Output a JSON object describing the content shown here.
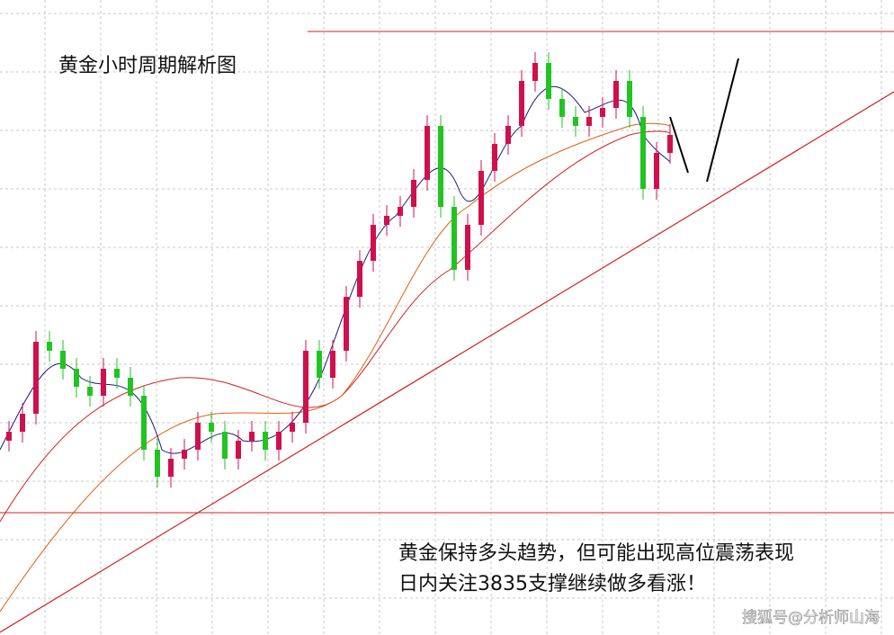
{
  "chart_data": {
    "type": "candlestick",
    "title": "黄金小时周期解析图",
    "annotations": [
      "黄金保持多头趋势，但可能出现高位震荡表现",
      "日内关注3835支撑继续做多看涨！"
    ],
    "watermark": "搜狐号@分析师山海",
    "up_color": "#d0104c",
    "down_color": "#22c422",
    "grid": true,
    "ylim": [
      0,
      706
    ],
    "open": [
      216,
      226,
      246,
      326,
      316,
      296,
      276,
      266,
      296,
      286,
      266,
      206,
      176,
      196,
      206,
      236,
      226,
      196,
      216,
      226,
      206,
      226,
      236,
      316,
      286,
      316,
      376,
      416,
      456,
      466,
      476,
      506,
      566,
      476,
      406,
      456,
      516,
      546,
      566,
      616,
      636,
      596,
      576,
      566,
      576,
      586,
      616,
      576,
      496,
      536
    ],
    "high": [
      238,
      258,
      338,
      338,
      328,
      308,
      288,
      308,
      308,
      298,
      278,
      218,
      208,
      218,
      248,
      248,
      238,
      228,
      238,
      238,
      238,
      248,
      328,
      328,
      328,
      388,
      428,
      468,
      478,
      488,
      518,
      578,
      578,
      488,
      468,
      528,
      558,
      578,
      628,
      648,
      648,
      608,
      588,
      588,
      598,
      628,
      628,
      588,
      548,
      568
    ],
    "low": [
      204,
      214,
      234,
      304,
      284,
      264,
      254,
      254,
      274,
      254,
      194,
      164,
      164,
      184,
      194,
      214,
      184,
      184,
      204,
      194,
      194,
      214,
      224,
      274,
      274,
      304,
      364,
      404,
      444,
      454,
      464,
      494,
      464,
      394,
      394,
      444,
      504,
      534,
      554,
      604,
      584,
      564,
      554,
      554,
      564,
      574,
      564,
      484,
      484,
      524
    ],
    "close": [
      226,
      246,
      326,
      316,
      296,
      276,
      266,
      296,
      286,
      266,
      206,
      176,
      196,
      206,
      236,
      226,
      196,
      216,
      226,
      206,
      226,
      236,
      316,
      286,
      316,
      376,
      416,
      456,
      466,
      476,
      506,
      566,
      476,
      406,
      456,
      516,
      546,
      566,
      616,
      636,
      596,
      576,
      566,
      576,
      586,
      616,
      576,
      496,
      536,
      556
    ]
  }
}
